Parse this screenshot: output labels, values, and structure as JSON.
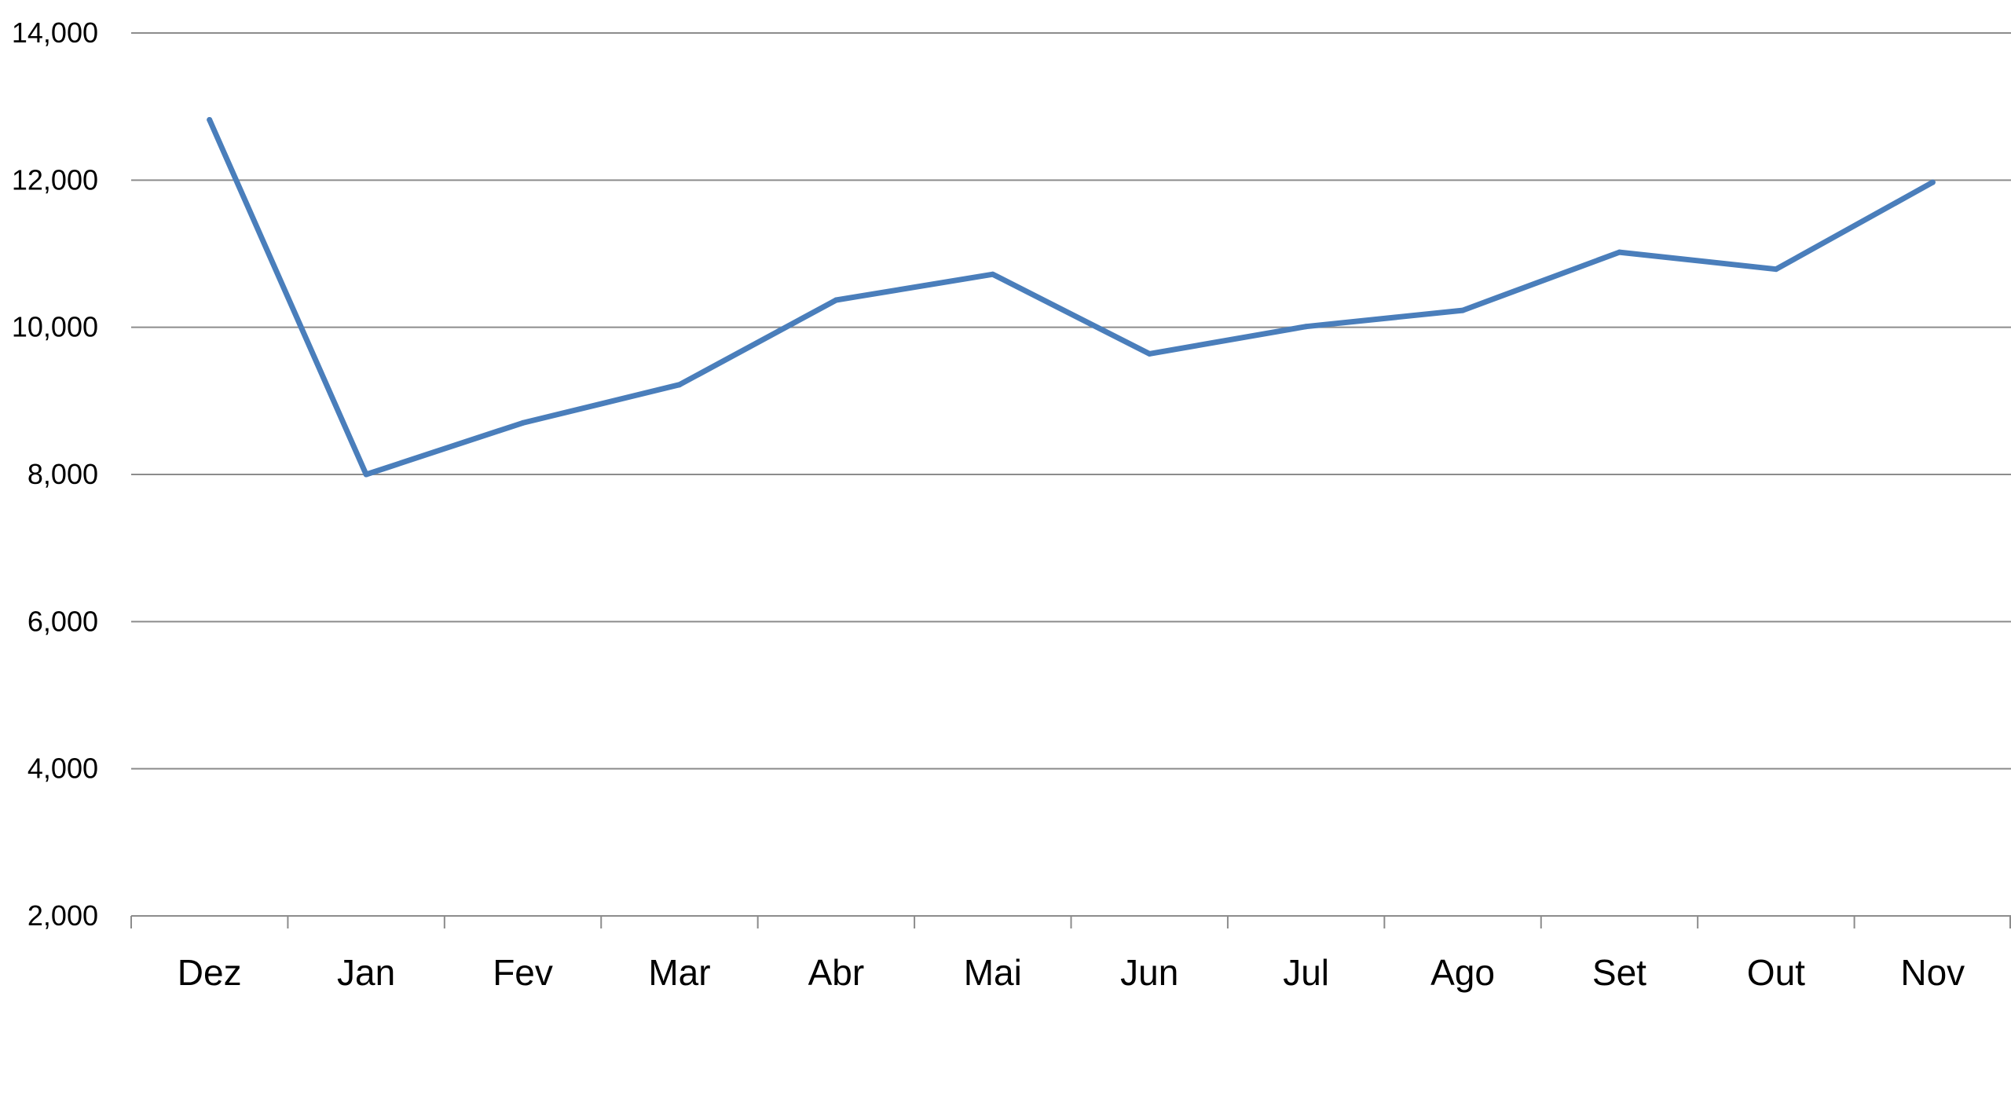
{
  "colors": {
    "series_line": "#4a7ebb",
    "gridline": "#8c8c8c",
    "text": "#000000",
    "background": "#ffffff"
  },
  "chart_data": {
    "type": "line",
    "title": "",
    "xlabel": "",
    "ylabel": "",
    "categories": [
      "Dez",
      "Jan",
      "Fev",
      "Mar",
      "Abr",
      "Mai",
      "Jun",
      "Jul",
      "Ago",
      "Set",
      "Out",
      "Nov"
    ],
    "series": [
      {
        "values": [
          12820,
          8000,
          8700,
          9220,
          10370,
          10720,
          9640,
          10010,
          10230,
          11020,
          10790,
          11970
        ]
      }
    ],
    "ylim": [
      2000,
      14000
    ],
    "yticks": [
      2000,
      4000,
      6000,
      8000,
      10000,
      12000,
      14000
    ],
    "ytick_labels": [
      "2,000",
      "4,000",
      "6,000",
      "8,000",
      "10,000",
      "12,000",
      "14,000"
    ],
    "grid": true,
    "legend": "none"
  }
}
